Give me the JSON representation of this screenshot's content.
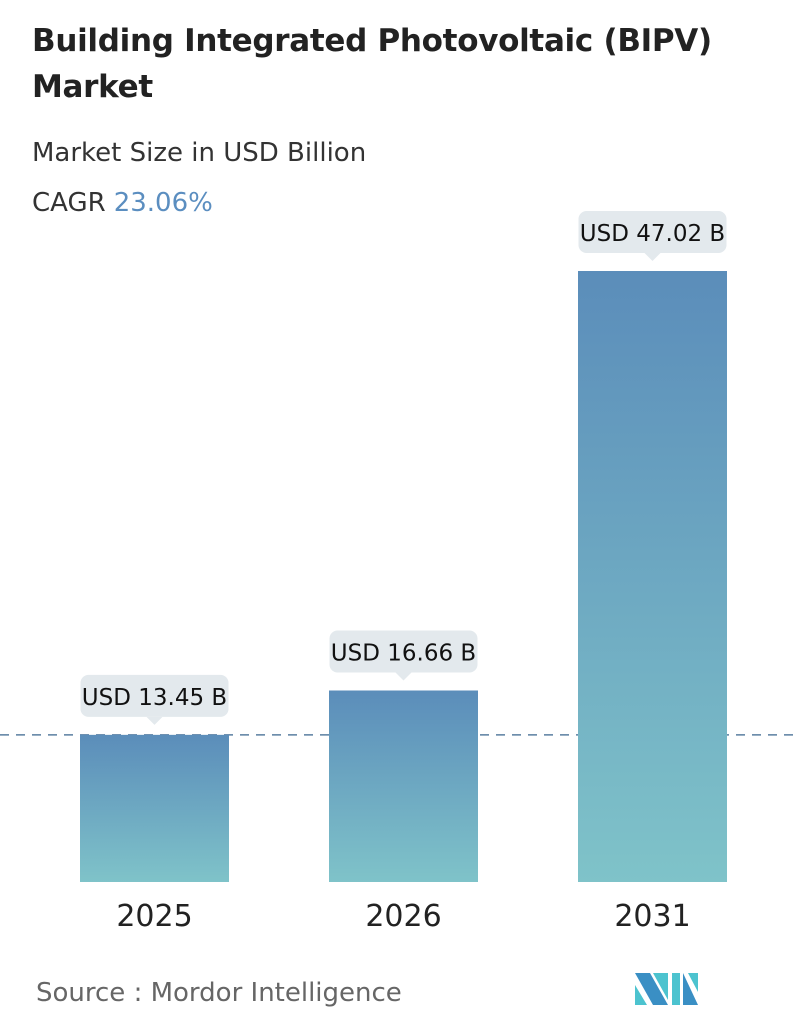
{
  "header": {
    "title": "Building Integrated Photovoltaic (BIPV) Market",
    "subtitle": "Market Size in USD Billion",
    "cagr_label": "CAGR",
    "cagr_value": "23.06%"
  },
  "footer": {
    "source": "Source :  Mordor Intelligence",
    "logo_text": "Mordor Intelligence logo"
  },
  "colors": {
    "bar_top": "#5b8dba",
    "bar_bottom": "#7fc3c9",
    "label_bg": "#e3e9ed",
    "reference_line": "#5a7fa0",
    "cagr": "#5b8ec0"
  },
  "chart_data": {
    "type": "bar",
    "categories": [
      "2025",
      "2026",
      "2031"
    ],
    "values": [
      13.45,
      16.66,
      47.02
    ],
    "data_labels": [
      "USD 13.45 B",
      "USD 16.66 B",
      "USD 47.02 B"
    ],
    "ylabel": "Market Size in USD Billion",
    "reference_line": "dashed line at 2025 value",
    "grid": false
  }
}
